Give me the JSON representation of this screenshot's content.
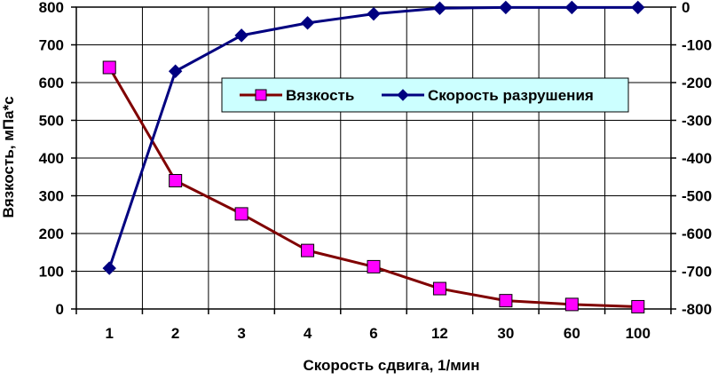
{
  "chart_data": {
    "type": "line",
    "xlabel": "Скорость сдвига,  1/мин",
    "ylabel": "Вязкость, мПа*с",
    "categories": [
      "1",
      "2",
      "3",
      "4",
      "6",
      "12",
      "30",
      "60",
      "100"
    ],
    "ylim_left": [
      0,
      800
    ],
    "ylim_right": [
      -800,
      0
    ],
    "yticks_left": [
      0,
      100,
      200,
      300,
      400,
      500,
      600,
      700,
      800
    ],
    "yticks_right": [
      0,
      -100,
      -200,
      -300,
      -400,
      -500,
      -600,
      -700,
      -800
    ],
    "grid": true,
    "legend_position": "top-right",
    "series": [
      {
        "name": "Вязкость",
        "axis": "left",
        "color": "#800000",
        "marker": "square",
        "marker_color": "#ff00ff",
        "values": [
          640,
          340,
          252,
          155,
          112,
          54,
          22,
          12,
          6
        ]
      },
      {
        "name": "Скорость разрушения",
        "axis": "right",
        "color": "#000080",
        "marker": "diamond",
        "marker_color": "#000080",
        "values": [
          -692,
          -170,
          -75,
          -42,
          -18,
          -3,
          -1,
          -1,
          -1
        ]
      }
    ],
    "plot_background": "#ffffff",
    "legend_background": "#ccffff"
  }
}
